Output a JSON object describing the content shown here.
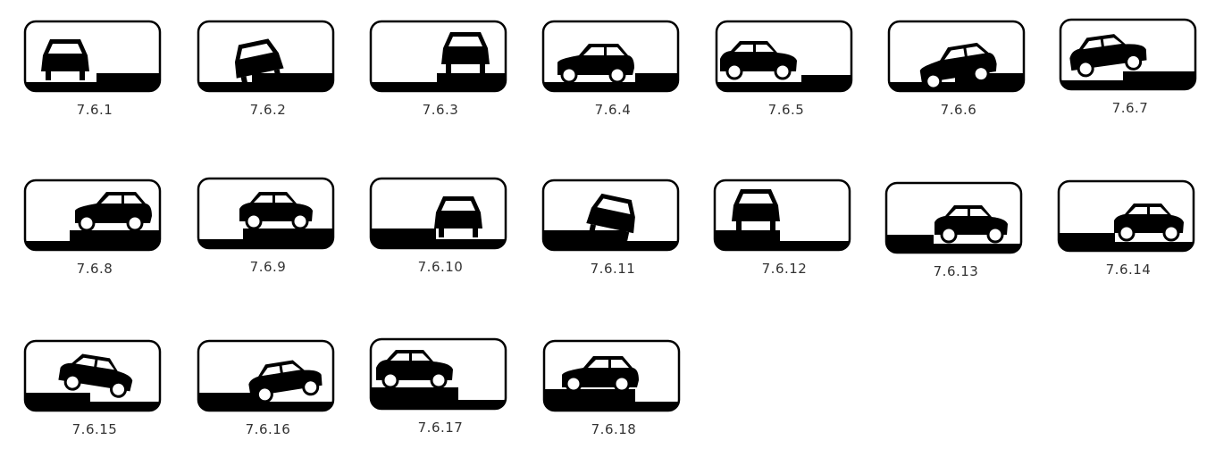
{
  "signs": [
    {
      "label": "7.6.1",
      "icon": "car-front-curb-right-icon"
    },
    {
      "label": "7.6.2",
      "icon": "car-front-tilted-on-curb-icon"
    },
    {
      "label": "7.6.3",
      "icon": "car-front-on-sidewalk-icon"
    },
    {
      "label": "7.6.4",
      "icon": "car-side-curb-right-icon"
    },
    {
      "label": "7.6.5",
      "icon": "car-side-curb-right-short-icon"
    },
    {
      "label": "7.6.6",
      "icon": "car-side-half-on-curb-icon"
    },
    {
      "label": "7.6.7",
      "icon": "car-side-rear-on-curb-icon"
    },
    {
      "label": "7.6.8",
      "icon": "car-side-on-sidewalk-icon"
    },
    {
      "label": "7.6.9",
      "icon": "car-side-on-sidewalk-left-icon"
    },
    {
      "label": "7.6.10",
      "icon": "car-front-curb-left-icon"
    },
    {
      "label": "7.6.11",
      "icon": "car-front-tilted-curb-left-icon"
    },
    {
      "label": "7.6.12",
      "icon": "car-front-on-sidewalk-left-icon"
    },
    {
      "label": "7.6.13",
      "icon": "car-side-curb-left-icon"
    },
    {
      "label": "7.6.14",
      "icon": "car-side-curb-left-far-icon"
    },
    {
      "label": "7.6.15",
      "icon": "car-side-tilted-curb-left-icon"
    },
    {
      "label": "7.6.16",
      "icon": "car-side-tilted-curb-left-rear-icon"
    },
    {
      "label": "7.6.17",
      "icon": "car-side-on-raised-left-icon"
    },
    {
      "label": "7.6.18",
      "icon": "car-side-on-raised-left-alt-icon"
    }
  ]
}
